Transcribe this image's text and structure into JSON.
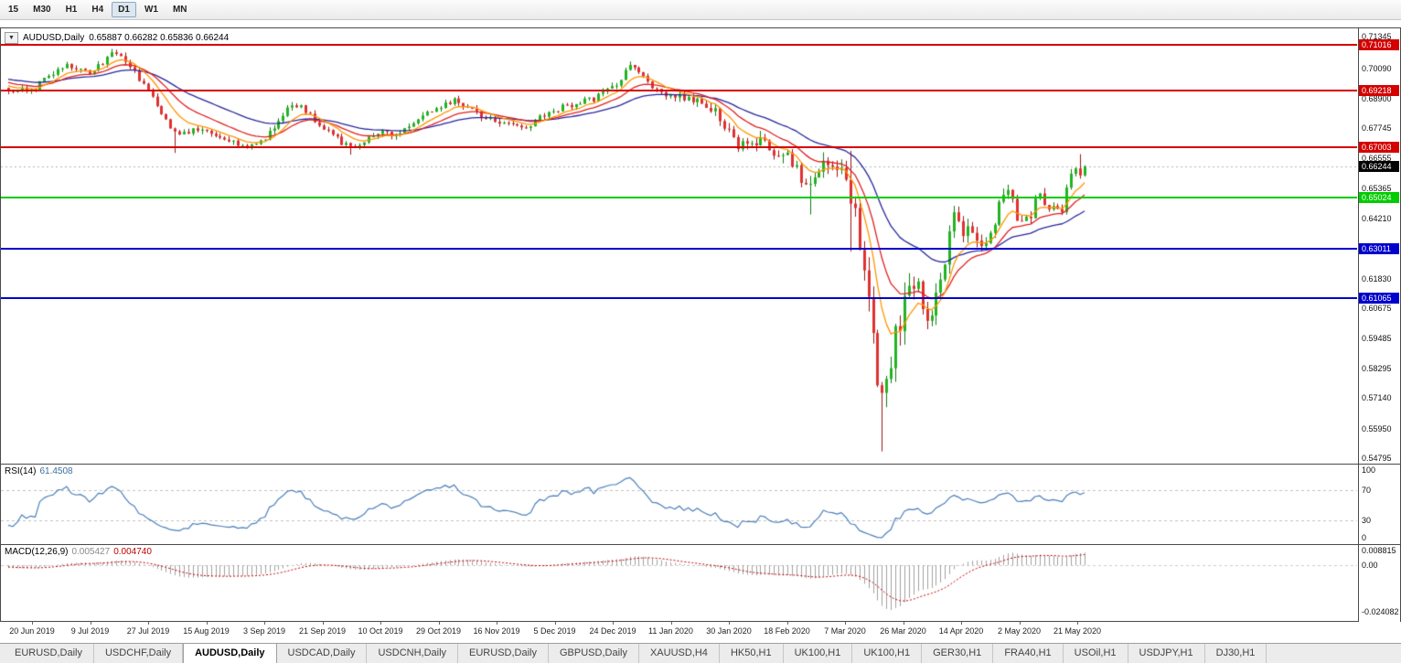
{
  "toolbar": {
    "timeframes": [
      {
        "label": "15",
        "active": false
      },
      {
        "label": "M30",
        "active": false
      },
      {
        "label": "H1",
        "active": false
      },
      {
        "label": "H4",
        "active": false
      },
      {
        "label": "D1",
        "active": true
      },
      {
        "label": "W1",
        "active": false
      },
      {
        "label": "MN",
        "active": false
      }
    ]
  },
  "main_chart": {
    "dropdown_glyph": "▼",
    "title": "AUDUSD,Daily",
    "ohlc_text": "0.65887 0.66282 0.65836 0.66244",
    "current_price": "0.66244",
    "price_axis_ticks": [
      "0.71345",
      "0.70090",
      "0.68900",
      "0.67745",
      "0.66555",
      "0.65365",
      "0.64210",
      "0.63020",
      "0.61830",
      "0.60675",
      "0.59485",
      "0.58295",
      "0.57140",
      "0.55950",
      "0.54795"
    ],
    "levels": [
      {
        "price": "0.71016",
        "color": "#d40000",
        "thickness": 2
      },
      {
        "price": "0.69218",
        "color": "#d40000",
        "thickness": 2
      },
      {
        "price": "0.67003",
        "color": "#d40000",
        "thickness": 2
      },
      {
        "price": "0.65024",
        "color": "#00cc00",
        "thickness": 2
      },
      {
        "price": "0.63011",
        "color": "#0000cc",
        "thickness": 2
      },
      {
        "price": "0.61065",
        "color": "#0000cc",
        "thickness": 2
      }
    ],
    "x_axis_labels": [
      "20 Jun 2019",
      "9 Jul 2019",
      "27 Jul 2019",
      "15 Aug 2019",
      "3 Sep 2019",
      "21 Sep 2019",
      "10 Oct 2019",
      "29 Oct 2019",
      "16 Nov 2019",
      "5 Dec 2019",
      "24 Dec 2019",
      "11 Jan 2020",
      "30 Jan 2020",
      "18 Feb 2020",
      "7 Mar 2020",
      "26 Mar 2020",
      "14 Apr 2020",
      "2 May 2020",
      "21 May 2020"
    ]
  },
  "rsi": {
    "label": "RSI(14)",
    "value": "61.4508",
    "axis_labels": [
      "100",
      "70",
      "30",
      "0"
    ],
    "level_lines": [
      70,
      30
    ],
    "line_color": "#4a7ebb"
  },
  "macd": {
    "label": "MACD(12,26,9)",
    "value_main": "0.005427",
    "value_signal": "0.004740",
    "axis_labels": [
      "0.008815",
      "0.00",
      "-0.024082"
    ],
    "histogram_color": "#a0a0a0",
    "signal_color": "#c00000"
  },
  "tabs": [
    {
      "label": "EURUSD,Daily",
      "active": false
    },
    {
      "label": "USDCHF,Daily",
      "active": false
    },
    {
      "label": "AUDUSD,Daily",
      "active": true
    },
    {
      "label": "USDCAD,Daily",
      "active": false
    },
    {
      "label": "USDCNH,Daily",
      "active": false
    },
    {
      "label": "EURUSD,Daily",
      "active": false
    },
    {
      "label": "GBPUSD,Daily",
      "active": false
    },
    {
      "label": "XAUUSD,H4",
      "active": false
    },
    {
      "label": "HK50,H1",
      "active": false
    },
    {
      "label": "UK100,H1",
      "active": false
    },
    {
      "label": "UK100,H1",
      "active": false
    },
    {
      "label": "GER30,H1",
      "active": false
    },
    {
      "label": "FRA40,H1",
      "active": false
    },
    {
      "label": "USOil,H1",
      "active": false
    },
    {
      "label": "USDJPY,H1",
      "active": false
    },
    {
      "label": "DJ30,H1",
      "active": false
    }
  ],
  "chart_data": {
    "type": "candlestick",
    "symbol": "AUDUSD",
    "timeframe": "Daily",
    "x_range": [
      "20 Jun 2019",
      "21 May 2020"
    ],
    "price_max": 0.7166,
    "price_min": 0.5457,
    "n_candles": 240,
    "warmup_bars": 60,
    "seed": 777,
    "x0": 8,
    "dx": 4.9247,
    "date_x0": 35,
    "date_dx": 63.5,
    "noise_base": 0.0026,
    "last_candle": {
      "o": 0.65887,
      "h": 0.66282,
      "l": 0.65836,
      "c": 0.66244
    },
    "bull_color": "#21b421",
    "bull_border": "#0f7d0f",
    "bear_color": "#e03030",
    "bear_border": "#9c1414",
    "ma_lines": [
      {
        "period": 8,
        "color": "#ff9500"
      },
      {
        "period": 16,
        "color": "#e02020"
      },
      {
        "period": 34,
        "color": "#26269d"
      }
    ],
    "rsi_period": 14,
    "macd_params": [
      12,
      26,
      9
    ],
    "macd_max": 0.0105,
    "macd_min": -0.0285,
    "keypoints": [
      [
        -0.26,
        0.701
      ],
      [
        -0.15,
        0.6975
      ],
      [
        -0.05,
        0.699
      ],
      [
        0.0,
        0.692
      ],
      [
        0.023,
        0.6925
      ],
      [
        0.04,
        0.699
      ],
      [
        0.055,
        0.702
      ],
      [
        0.07,
        0.7005
      ],
      [
        0.077,
        0.6985
      ],
      [
        0.088,
        0.7035
      ],
      [
        0.098,
        0.7078
      ],
      [
        0.108,
        0.704
      ],
      [
        0.118,
        0.699
      ],
      [
        0.131,
        0.6905
      ],
      [
        0.142,
        0.684
      ],
      [
        0.152,
        0.677
      ],
      [
        0.162,
        0.6755
      ],
      [
        0.172,
        0.677
      ],
      [
        0.185,
        0.676
      ],
      [
        0.198,
        0.6735
      ],
      [
        0.21,
        0.6715
      ],
      [
        0.222,
        0.669
      ],
      [
        0.232,
        0.672
      ],
      [
        0.239,
        0.674
      ],
      [
        0.252,
        0.681
      ],
      [
        0.264,
        0.6868
      ],
      [
        0.276,
        0.6845
      ],
      [
        0.286,
        0.679
      ],
      [
        0.293,
        0.677
      ],
      [
        0.305,
        0.6735
      ],
      [
        0.317,
        0.6695
      ],
      [
        0.33,
        0.6725
      ],
      [
        0.347,
        0.6758
      ],
      [
        0.36,
        0.675
      ],
      [
        0.374,
        0.6772
      ],
      [
        0.388,
        0.683
      ],
      [
        0.401,
        0.6852
      ],
      [
        0.413,
        0.6888
      ],
      [
        0.425,
        0.686
      ],
      [
        0.44,
        0.682
      ],
      [
        0.455,
        0.6792
      ],
      [
        0.468,
        0.6788
      ],
      [
        0.482,
        0.6782
      ],
      [
        0.495,
        0.6822
      ],
      [
        0.509,
        0.685
      ],
      [
        0.525,
        0.687
      ],
      [
        0.545,
        0.689
      ],
      [
        0.562,
        0.6935
      ],
      [
        0.579,
        0.7025
      ],
      [
        0.59,
        0.6985
      ],
      [
        0.6,
        0.693
      ],
      [
        0.616,
        0.69
      ],
      [
        0.63,
        0.6895
      ],
      [
        0.645,
        0.687
      ],
      [
        0.658,
        0.684
      ],
      [
        0.67,
        0.675
      ],
      [
        0.678,
        0.669
      ],
      [
        0.69,
        0.673
      ],
      [
        0.7,
        0.6715
      ],
      [
        0.71,
        0.6685
      ],
      [
        0.724,
        0.668
      ],
      [
        0.731,
        0.662
      ],
      [
        0.738,
        0.656
      ],
      [
        0.743,
        0.653
      ],
      [
        0.75,
        0.656
      ],
      [
        0.757,
        0.663
      ],
      [
        0.763,
        0.6645
      ],
      [
        0.77,
        0.66
      ],
      [
        0.778,
        0.6585
      ],
      [
        0.782,
        0.65
      ],
      [
        0.786,
        0.649
      ],
      [
        0.79,
        0.629
      ],
      [
        0.795,
        0.618
      ],
      [
        0.799,
        0.611
      ],
      [
        0.803,
        0.599
      ],
      [
        0.807,
        0.579
      ],
      [
        0.811,
        0.574
      ],
      [
        0.815,
        0.58
      ],
      [
        0.819,
        0.583
      ],
      [
        0.823,
        0.596
      ],
      [
        0.827,
        0.596
      ],
      [
        0.832,
        0.6065
      ],
      [
        0.836,
        0.617
      ],
      [
        0.84,
        0.6165
      ],
      [
        0.845,
        0.6135
      ],
      [
        0.849,
        0.609
      ],
      [
        0.853,
        0.606
      ],
      [
        0.857,
        0.5995
      ],
      [
        0.861,
        0.6085
      ],
      [
        0.865,
        0.6165
      ],
      [
        0.869,
        0.623
      ],
      [
        0.874,
        0.635
      ],
      [
        0.878,
        0.642
      ],
      [
        0.882,
        0.6437
      ],
      [
        0.886,
        0.6323
      ],
      [
        0.89,
        0.6365
      ],
      [
        0.895,
        0.6366
      ],
      [
        0.899,
        0.6335
      ],
      [
        0.903,
        0.6297
      ],
      [
        0.907,
        0.6324
      ],
      [
        0.911,
        0.6374
      ],
      [
        0.916,
        0.6393
      ],
      [
        0.92,
        0.6463
      ],
      [
        0.924,
        0.6495
      ],
      [
        0.928,
        0.6547
      ],
      [
        0.932,
        0.651
      ],
      [
        0.936,
        0.6416
      ],
      [
        0.941,
        0.6428
      ],
      [
        0.945,
        0.6433
      ],
      [
        0.949,
        0.6418
      ],
      [
        0.953,
        0.6493
      ],
      [
        0.957,
        0.6533
      ],
      [
        0.962,
        0.6485
      ],
      [
        0.966,
        0.6449
      ],
      [
        0.97,
        0.6451
      ],
      [
        0.974,
        0.6459
      ],
      [
        0.978,
        0.6413
      ],
      [
        0.983,
        0.6527
      ],
      [
        0.987,
        0.6596
      ],
      [
        0.991,
        0.6601
      ],
      [
        0.995,
        0.665
      ],
      [
        1.0,
        0.66244
      ]
    ],
    "volatility": [
      [
        -0.3,
        0.8
      ],
      [
        0.6,
        0.8
      ],
      [
        0.67,
        1.3
      ],
      [
        0.73,
        1.7
      ],
      [
        0.775,
        2.3
      ],
      [
        0.79,
        3.2
      ],
      [
        0.83,
        3.2
      ],
      [
        0.86,
        2.3
      ],
      [
        0.9,
        1.5
      ],
      [
        1.0,
        1.1
      ]
    ],
    "spikes": [
      {
        "f": 0.098,
        "high": 0.7082
      },
      {
        "f": 0.153,
        "low": 0.6677
      },
      {
        "f": 0.317,
        "low": 0.667
      },
      {
        "f": 0.579,
        "high": 0.7032
      },
      {
        "f": 0.743,
        "low": 0.6435
      },
      {
        "f": 0.782,
        "high": 0.6685,
        "low": 0.629
      },
      {
        "f": 0.811,
        "low": 0.5505
      },
      {
        "f": 0.995,
        "high": 0.6672
      }
    ]
  }
}
